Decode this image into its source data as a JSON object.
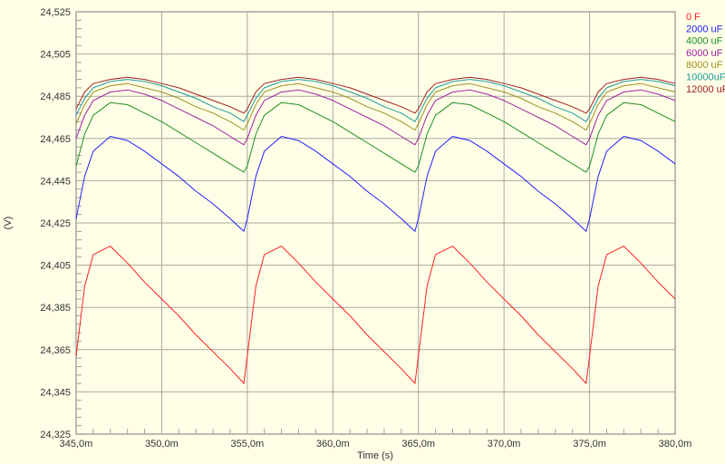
{
  "chart_data": {
    "type": "line",
    "title": "",
    "xlabel": "Time (s)",
    "ylabel": "(V)",
    "xlim": [
      345.0,
      380.0
    ],
    "ylim": [
      24.325,
      24.525
    ],
    "x_unit": "m",
    "grid": true,
    "legend_placement": "right",
    "x_ticks": [
      345,
      350,
      355,
      360,
      365,
      370,
      375,
      380
    ],
    "x_tick_labels": [
      "345,0m",
      "350,0m",
      "355,0m",
      "360,0m",
      "365,0m",
      "370,0m",
      "375,0m",
      "380,0m"
    ],
    "y_ticks": [
      24.325,
      24.345,
      24.365,
      24.385,
      24.405,
      24.425,
      24.445,
      24.465,
      24.485,
      24.505,
      24.525
    ],
    "y_tick_labels": [
      "24,325",
      "24,345",
      "24,365",
      "24,385",
      "24,405",
      "24,425",
      "24,445",
      "24,465",
      "24,485",
      "24,505",
      "24,525"
    ],
    "x": [
      345.0,
      345.5,
      346,
      347,
      348,
      349,
      350,
      351,
      352,
      353,
      354,
      354.8,
      355.0,
      355.5,
      356,
      357,
      358,
      359,
      360,
      361,
      362,
      363,
      364,
      364.8,
      365.0,
      365.5,
      366,
      367,
      368,
      369,
      370,
      371,
      372,
      373,
      374,
      374.8,
      375.0,
      375.5,
      376,
      377,
      378,
      379,
      380
    ],
    "series": [
      {
        "name": "0 F",
        "color": "#ff2020",
        "values": [
          24.362,
          24.395,
          24.41,
          24.414,
          24.406,
          24.397,
          24.389,
          24.381,
          24.372,
          24.364,
          24.356,
          24.349,
          24.362,
          24.395,
          24.41,
          24.414,
          24.406,
          24.397,
          24.389,
          24.381,
          24.372,
          24.364,
          24.356,
          24.349,
          24.362,
          24.395,
          24.41,
          24.414,
          24.406,
          24.397,
          24.389,
          24.381,
          24.372,
          24.364,
          24.356,
          24.349,
          24.362,
          24.395,
          24.41,
          24.414,
          24.406,
          24.397,
          24.389
        ]
      },
      {
        "name": "2000 uF",
        "color": "#2020ff",
        "values": [
          24.427,
          24.447,
          24.459,
          24.466,
          24.464,
          24.459,
          24.453,
          24.447,
          24.44,
          24.434,
          24.427,
          24.421,
          24.427,
          24.447,
          24.459,
          24.466,
          24.464,
          24.459,
          24.453,
          24.447,
          24.44,
          24.434,
          24.427,
          24.421,
          24.427,
          24.447,
          24.459,
          24.466,
          24.464,
          24.459,
          24.453,
          24.447,
          24.44,
          24.434,
          24.427,
          24.421,
          24.427,
          24.447,
          24.459,
          24.466,
          24.464,
          24.459,
          24.453
        ]
      },
      {
        "name": "4000 uF",
        "color": "#209020",
        "values": [
          24.452,
          24.467,
          24.476,
          24.482,
          24.481,
          24.477,
          24.473,
          24.468,
          24.463,
          24.458,
          24.453,
          24.449,
          24.452,
          24.467,
          24.476,
          24.482,
          24.481,
          24.477,
          24.473,
          24.468,
          24.463,
          24.458,
          24.453,
          24.449,
          24.452,
          24.467,
          24.476,
          24.482,
          24.481,
          24.477,
          24.473,
          24.468,
          24.463,
          24.458,
          24.453,
          24.449,
          24.452,
          24.467,
          24.476,
          24.482,
          24.481,
          24.477,
          24.473
        ]
      },
      {
        "name": "6000 uF",
        "color": "#a020a0",
        "values": [
          24.465,
          24.476,
          24.483,
          24.487,
          24.488,
          24.486,
          24.483,
          24.479,
          24.475,
          24.471,
          24.466,
          24.462,
          24.465,
          24.476,
          24.483,
          24.487,
          24.488,
          24.486,
          24.483,
          24.479,
          24.475,
          24.471,
          24.466,
          24.462,
          24.465,
          24.476,
          24.483,
          24.487,
          24.488,
          24.486,
          24.483,
          24.479,
          24.475,
          24.471,
          24.466,
          24.462,
          24.465,
          24.476,
          24.483,
          24.487,
          24.488,
          24.486,
          24.483
        ]
      },
      {
        "name": "8000 uF",
        "color": "#a09020",
        "values": [
          24.472,
          24.481,
          24.487,
          24.49,
          24.491,
          24.489,
          24.487,
          24.484,
          24.48,
          24.477,
          24.473,
          24.469,
          24.472,
          24.481,
          24.487,
          24.49,
          24.491,
          24.489,
          24.487,
          24.484,
          24.48,
          24.477,
          24.473,
          24.469,
          24.472,
          24.481,
          24.487,
          24.49,
          24.491,
          24.489,
          24.487,
          24.484,
          24.48,
          24.477,
          24.473,
          24.469,
          24.472,
          24.481,
          24.487,
          24.49,
          24.491,
          24.489,
          24.487
        ]
      },
      {
        "name": "10000uF",
        "color": "#209a9a",
        "values": [
          24.476,
          24.484,
          24.489,
          24.492,
          24.493,
          24.492,
          24.49,
          24.487,
          24.484,
          24.48,
          24.477,
          24.473,
          24.476,
          24.484,
          24.489,
          24.492,
          24.493,
          24.492,
          24.49,
          24.487,
          24.484,
          24.48,
          24.477,
          24.473,
          24.476,
          24.484,
          24.489,
          24.492,
          24.493,
          24.492,
          24.49,
          24.487,
          24.484,
          24.48,
          24.477,
          24.473,
          24.476,
          24.484,
          24.489,
          24.492,
          24.493,
          24.492,
          24.49
        ]
      },
      {
        "name": "12000 uF",
        "color": "#a02020",
        "values": [
          24.479,
          24.487,
          24.491,
          24.493,
          24.494,
          24.493,
          24.491,
          24.489,
          24.486,
          24.483,
          24.48,
          24.477,
          24.479,
          24.487,
          24.491,
          24.493,
          24.494,
          24.493,
          24.491,
          24.489,
          24.486,
          24.483,
          24.48,
          24.477,
          24.479,
          24.487,
          24.491,
          24.493,
          24.494,
          24.493,
          24.491,
          24.489,
          24.486,
          24.483,
          24.48,
          24.477,
          24.479,
          24.487,
          24.491,
          24.493,
          24.494,
          24.493,
          24.491
        ]
      }
    ]
  },
  "colors": {
    "background": "#ffffe8",
    "grid": "#a8a8a0",
    "axis": "#a0a0a0"
  }
}
